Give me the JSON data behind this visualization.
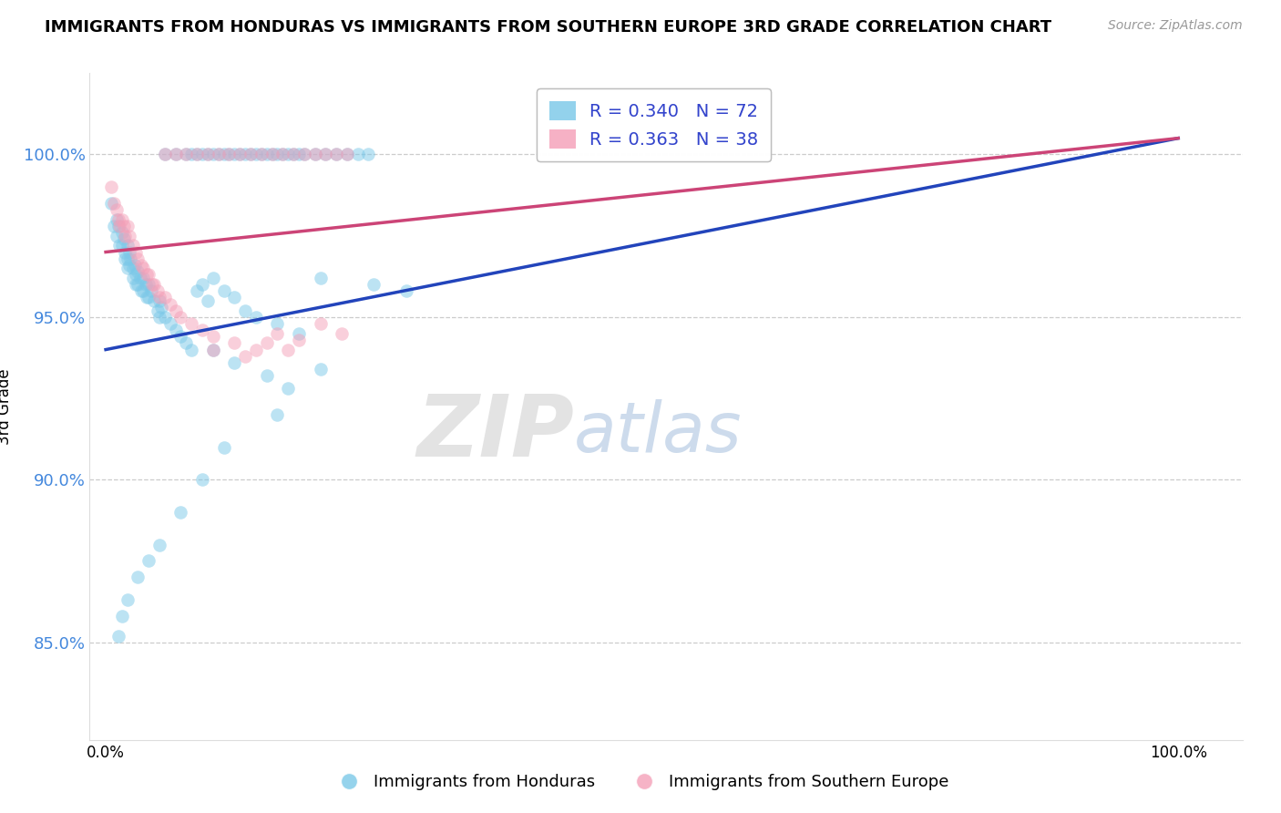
{
  "title": "IMMIGRANTS FROM HONDURAS VS IMMIGRANTS FROM SOUTHERN EUROPE 3RD GRADE CORRELATION CHART",
  "source": "Source: ZipAtlas.com",
  "ylabel": "3rd Grade",
  "R_blue": 0.34,
  "N_blue": 72,
  "R_pink": 0.363,
  "N_pink": 38,
  "blue_color": "#7bc8e8",
  "pink_color": "#f4a0b8",
  "trend_blue": "#2244bb",
  "trend_pink": "#cc4477",
  "watermark_zip": "ZIP",
  "watermark_atlas": "atlas",
  "ylim": [
    0.82,
    1.025
  ],
  "xlim": [
    -0.015,
    1.06
  ],
  "yticks": [
    0.85,
    0.9,
    0.95,
    1.0
  ],
  "ytick_labels": [
    "85.0%",
    "90.0%",
    "95.0%",
    "100.0%"
  ],
  "xtick_labels": [
    "0.0%",
    "100.0%"
  ],
  "series_label_blue": "Immigrants from Honduras",
  "series_label_pink": "Immigrants from Southern Europe",
  "blue_trend_x0": 0.0,
  "blue_trend_y0": 0.94,
  "blue_trend_x1": 1.0,
  "blue_trend_y1": 1.005,
  "pink_trend_x0": 0.0,
  "pink_trend_y0": 0.97,
  "pink_trend_x1": 1.0,
  "pink_trend_y1": 1.005,
  "blue_x": [
    0.005,
    0.008,
    0.01,
    0.01,
    0.012,
    0.013,
    0.015,
    0.015,
    0.017,
    0.018,
    0.018,
    0.02,
    0.02,
    0.02,
    0.022,
    0.022,
    0.023,
    0.025,
    0.025,
    0.027,
    0.028,
    0.028,
    0.03,
    0.03,
    0.032,
    0.033,
    0.035,
    0.035,
    0.037,
    0.038,
    0.04,
    0.04,
    0.042,
    0.045,
    0.048,
    0.05,
    0.05,
    0.052,
    0.055,
    0.06,
    0.065,
    0.07,
    0.075,
    0.08,
    0.085,
    0.09,
    0.095,
    0.1,
    0.11,
    0.12,
    0.13,
    0.14,
    0.16,
    0.18,
    0.2,
    0.25,
    0.28,
    0.1,
    0.12,
    0.15,
    0.17,
    0.2,
    0.16,
    0.11,
    0.09,
    0.07,
    0.05,
    0.04,
    0.03,
    0.02,
    0.015,
    0.012
  ],
  "blue_y": [
    0.985,
    0.978,
    0.98,
    0.975,
    0.978,
    0.972,
    0.976,
    0.972,
    0.974,
    0.97,
    0.968,
    0.972,
    0.968,
    0.965,
    0.97,
    0.966,
    0.968,
    0.965,
    0.962,
    0.966,
    0.963,
    0.96,
    0.964,
    0.96,
    0.962,
    0.958,
    0.962,
    0.958,
    0.96,
    0.956,
    0.96,
    0.956,
    0.958,
    0.955,
    0.952,
    0.955,
    0.95,
    0.953,
    0.95,
    0.948,
    0.946,
    0.944,
    0.942,
    0.94,
    0.958,
    0.96,
    0.955,
    0.962,
    0.958,
    0.956,
    0.952,
    0.95,
    0.948,
    0.945,
    0.962,
    0.96,
    0.958,
    0.94,
    0.936,
    0.932,
    0.928,
    0.934,
    0.92,
    0.91,
    0.9,
    0.89,
    0.88,
    0.875,
    0.87,
    0.863,
    0.858,
    0.852
  ],
  "pink_x": [
    0.005,
    0.008,
    0.01,
    0.012,
    0.013,
    0.015,
    0.017,
    0.018,
    0.02,
    0.022,
    0.025,
    0.028,
    0.03,
    0.033,
    0.035,
    0.038,
    0.04,
    0.043,
    0.045,
    0.048,
    0.05,
    0.055,
    0.06,
    0.065,
    0.07,
    0.08,
    0.09,
    0.1,
    0.12,
    0.14,
    0.16,
    0.18,
    0.2,
    0.22,
    0.1,
    0.13,
    0.15,
    0.17
  ],
  "pink_y": [
    0.99,
    0.985,
    0.983,
    0.98,
    0.978,
    0.98,
    0.978,
    0.975,
    0.978,
    0.975,
    0.972,
    0.97,
    0.968,
    0.966,
    0.965,
    0.963,
    0.963,
    0.96,
    0.96,
    0.958,
    0.956,
    0.956,
    0.954,
    0.952,
    0.95,
    0.948,
    0.946,
    0.944,
    0.942,
    0.94,
    0.945,
    0.943,
    0.948,
    0.945,
    0.94,
    0.938,
    0.942,
    0.94
  ],
  "blue_x_top": [
    0.055,
    0.065,
    0.075,
    0.085,
    0.095,
    0.105,
    0.115,
    0.125,
    0.135,
    0.145,
    0.155,
    0.165,
    0.175,
    0.185,
    0.195,
    0.205,
    0.215,
    0.225,
    0.235,
    0.245,
    0.08,
    0.09,
    0.1,
    0.11,
    0.12,
    0.13,
    0.14,
    0.15,
    0.16,
    0.17,
    0.18
  ],
  "blue_y_top": [
    1.0,
    1.0,
    1.0,
    1.0,
    1.0,
    1.0,
    1.0,
    1.0,
    1.0,
    1.0,
    1.0,
    1.0,
    1.0,
    1.0,
    1.0,
    1.0,
    1.0,
    1.0,
    1.0,
    1.0,
    1.0,
    1.0,
    1.0,
    1.0,
    1.0,
    1.0,
    1.0,
    1.0,
    1.0,
    1.0,
    1.0
  ],
  "pink_x_top": [
    0.055,
    0.065,
    0.075,
    0.085,
    0.095,
    0.105,
    0.115,
    0.125,
    0.135,
    0.145,
    0.155,
    0.165,
    0.175,
    0.185,
    0.195,
    0.205,
    0.215,
    0.225
  ],
  "pink_y_top": [
    1.0,
    1.0,
    1.0,
    1.0,
    1.0,
    1.0,
    1.0,
    1.0,
    1.0,
    1.0,
    1.0,
    1.0,
    1.0,
    1.0,
    1.0,
    1.0,
    1.0,
    1.0
  ]
}
